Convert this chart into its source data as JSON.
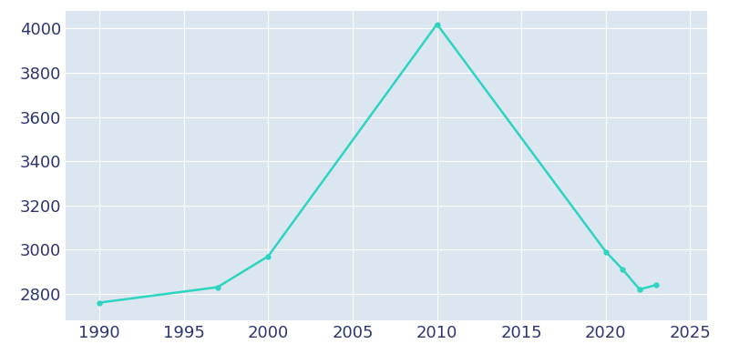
{
  "years": [
    1990,
    1997,
    2000,
    2010,
    2020,
    2021,
    2022,
    2023
  ],
  "population": [
    2760,
    2830,
    2970,
    4020,
    2990,
    2910,
    2820,
    2840
  ],
  "line_color": "#2dd4bf",
  "marker": "o",
  "marker_size": 3.5,
  "bg_color": "#ffffff",
  "plot_bg_color": "#dce6f0",
  "grid_color": "#ffffff",
  "xlabel": "",
  "ylabel": "",
  "xlim": [
    1988,
    2026
  ],
  "ylim": [
    2680,
    4080
  ],
  "xticks": [
    1990,
    1995,
    2000,
    2005,
    2010,
    2015,
    2020,
    2025
  ],
  "yticks": [
    2800,
    3000,
    3200,
    3400,
    3600,
    3800,
    4000
  ],
  "tick_label_color": "#2d3670",
  "tick_fontsize": 13,
  "line_width": 1.8
}
